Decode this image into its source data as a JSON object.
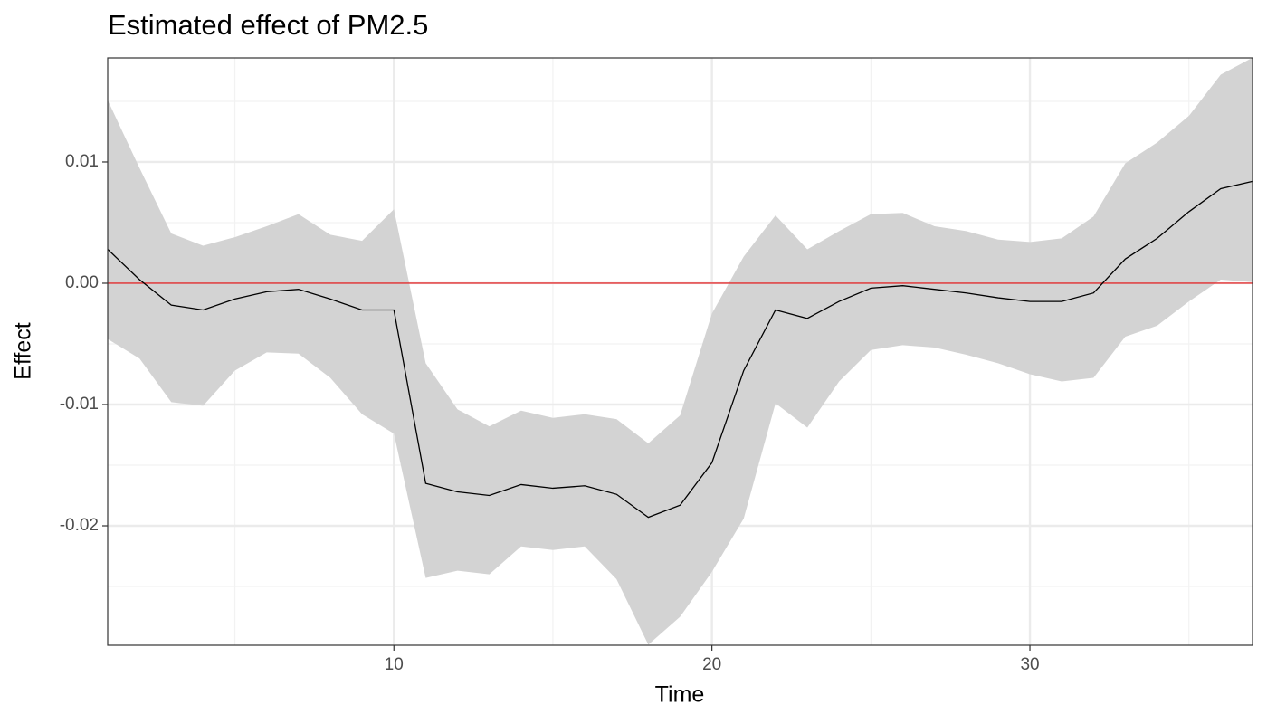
{
  "chart_data": {
    "type": "line",
    "title": "Estimated effect of PM2.5",
    "x_label": "Time",
    "y_label": "Effect",
    "x": [
      1,
      2,
      3,
      4,
      5,
      6,
      7,
      8,
      9,
      10,
      11,
      12,
      13,
      14,
      15,
      16,
      17,
      18,
      19,
      20,
      21,
      22,
      23,
      24,
      25,
      26,
      27,
      28,
      29,
      30,
      31,
      32,
      33,
      34,
      35,
      36,
      37
    ],
    "series": [
      {
        "color": "#000000",
        "values": [
          0.0028,
          0.0003,
          -0.0018,
          -0.0022,
          -0.0013,
          -0.0007,
          -0.0005,
          -0.0013,
          -0.0022,
          -0.0022,
          -0.0165,
          -0.0172,
          -0.0175,
          -0.0166,
          -0.0169,
          -0.0167,
          -0.0174,
          -0.0193,
          -0.0183,
          -0.0148,
          -0.0072,
          -0.0022,
          -0.0029,
          -0.0015,
          -0.0004,
          -0.0002,
          -0.0005,
          -0.0008,
          -0.0012,
          -0.0015,
          -0.0015,
          -0.0008,
          0.002,
          0.0037,
          0.0059,
          0.0078,
          0.0084
        ]
      }
    ],
    "band": {
      "color": "#d3d3d3",
      "upper": [
        0.0151,
        0.0095,
        0.0041,
        0.0031,
        0.0038,
        0.0047,
        0.0057,
        0.004,
        0.0035,
        0.0061,
        -0.0066,
        -0.0104,
        -0.0118,
        -0.0105,
        -0.0111,
        -0.0108,
        -0.0112,
        -0.0132,
        -0.0109,
        -0.0025,
        0.0022,
        0.0056,
        0.0028,
        0.0043,
        0.0057,
        0.0058,
        0.0047,
        0.0043,
        0.0036,
        0.0034,
        0.0037,
        0.0055,
        0.0099,
        0.0116,
        0.0138,
        0.0172,
        0.0186
      ],
      "lower": [
        -0.0046,
        -0.0062,
        -0.0098,
        -0.0101,
        -0.0072,
        -0.0057,
        -0.0058,
        -0.0078,
        -0.0108,
        -0.0124,
        -0.0243,
        -0.0237,
        -0.024,
        -0.0217,
        -0.022,
        -0.0217,
        -0.0244,
        -0.0298,
        -0.0275,
        -0.0238,
        -0.0194,
        -0.0099,
        -0.0119,
        -0.0081,
        -0.0055,
        -0.0051,
        -0.0053,
        -0.0059,
        -0.0066,
        -0.0075,
        -0.0081,
        -0.0078,
        -0.0044,
        -0.0035,
        -0.0015,
        0.0003,
        0.0001
      ]
    },
    "hline": {
      "value": 0,
      "color": "#e41a1c"
    },
    "xlim": [
      1,
      37
    ],
    "xticks": [
      10,
      20,
      30
    ],
    "x_minor_grid": [
      5,
      15,
      25,
      35
    ],
    "ylim": [
      -0.02985,
      0.01858
    ],
    "yticks": [
      -0.02,
      -0.01,
      {
        "value": 0,
        "label": "0.00"
      },
      0.01
    ],
    "y_minor_grid": [
      -0.025,
      -0.015,
      -0.005,
      0.005,
      0.015
    ],
    "grid": true
  }
}
